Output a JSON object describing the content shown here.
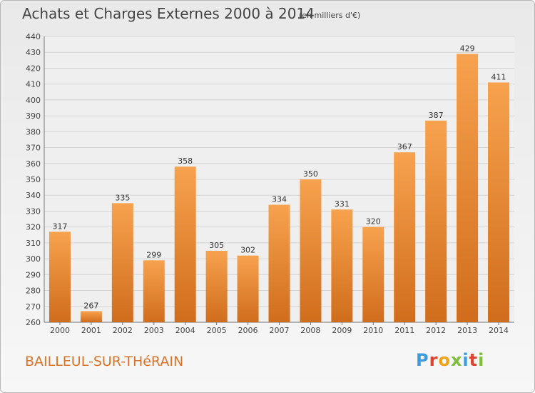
{
  "chart_data": {
    "type": "bar",
    "title": "Achats et Charges Externes 2000 à 2014",
    "subtitle": "(en milliers d'€)",
    "categories": [
      "2000",
      "2001",
      "2002",
      "2003",
      "2004",
      "2005",
      "2006",
      "2007",
      "2008",
      "2009",
      "2010",
      "2011",
      "2012",
      "2013",
      "2014"
    ],
    "values": [
      317,
      267,
      335,
      299,
      358,
      305,
      302,
      334,
      350,
      331,
      320,
      367,
      387,
      429,
      411
    ],
    "ylim": [
      260,
      440
    ],
    "yticks": [
      260,
      270,
      280,
      290,
      300,
      310,
      320,
      330,
      340,
      350,
      360,
      370,
      380,
      390,
      400,
      410,
      420,
      430,
      440
    ],
    "grid": true,
    "bar_color_top": "#f7a24e",
    "bar_color_bottom": "#d06d1c"
  },
  "footer": {
    "commune": "BAILLEUL-SUR-THéRAIN",
    "logo_text": "Proxiti"
  },
  "colors": {
    "commune_text": "#d9742a",
    "logo_letters": [
      "#3a9be0",
      "#e0432f",
      "#f0a21a",
      "#7dbf3a",
      "#3a9be0",
      "#e0432f",
      "#7dbf3a"
    ]
  }
}
